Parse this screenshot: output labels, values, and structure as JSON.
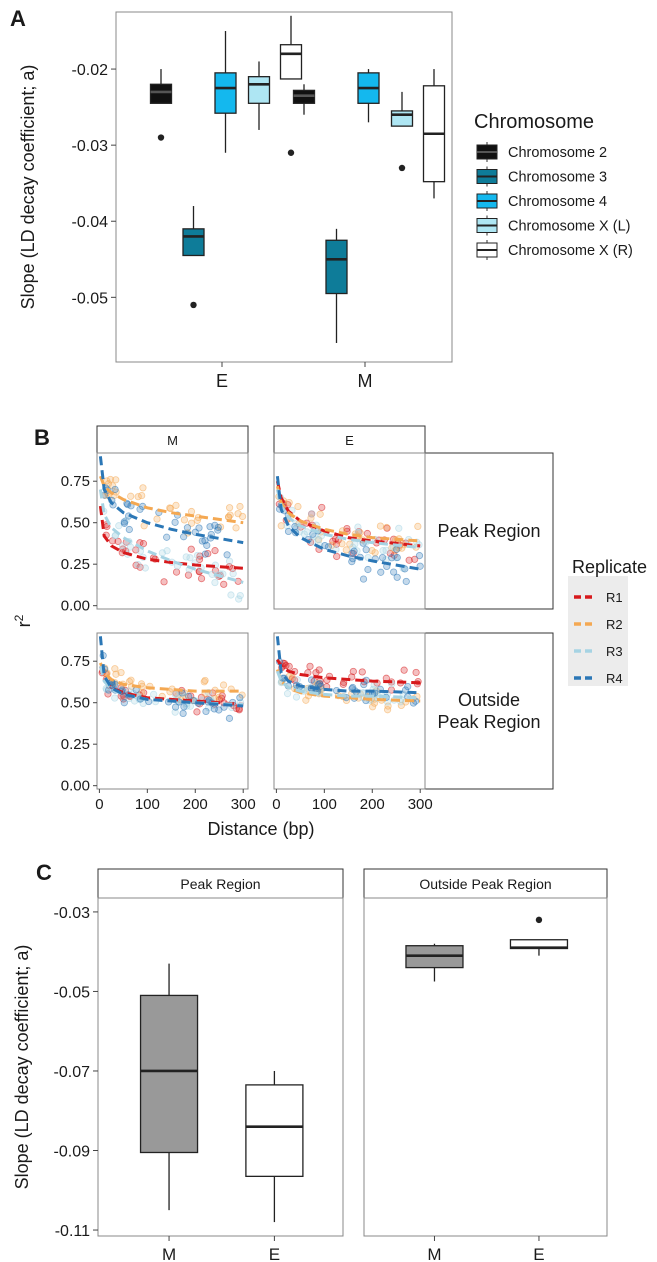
{
  "panel_labels": [
    "A",
    "B",
    "C"
  ],
  "colors": {
    "chr2": "#111111",
    "chr3": "#0e7c99",
    "chr4": "#14b8ee",
    "chrXL": "#aee6f3",
    "chrXR": "#ffffff",
    "R1": "#d7191c",
    "R2": "#f4a852",
    "R3": "#a6d3e3",
    "R4": "#2b77b6",
    "boxM": "#999999",
    "boxE": "#ffffff"
  },
  "chart_data": [
    {
      "id": "A",
      "type": "box",
      "ylabel": "Slope (LD decay coefficient; a)",
      "ylim": [
        -0.0585,
        -0.0125
      ],
      "y_ticks": [
        -0.02,
        -0.03,
        -0.04,
        -0.05
      ],
      "y_tick_labels": [
        "-0.02",
        "-0.03",
        "-0.04",
        "-0.05"
      ],
      "categories": [
        "E",
        "M"
      ],
      "legend": {
        "title": "Chromosome",
        "position": "right",
        "entries": [
          "Chromosome 2",
          "Chromosome 3",
          "Chromosome 4",
          "Chromosome X (L)",
          "Chromosome X (R)"
        ]
      },
      "series": [
        {
          "name": "Chromosome 2",
          "color_key": "chr2",
          "boxes": [
            {
              "category": "E",
              "min": -0.0245,
              "q1": -0.0245,
              "median": -0.023,
              "q3": -0.022,
              "max": -0.02,
              "outliers": [
                -0.029
              ]
            },
            {
              "category": "M",
              "min": -0.026,
              "q1": -0.0245,
              "median": -0.0235,
              "q3": -0.0228,
              "max": -0.022,
              "outliers": []
            }
          ]
        },
        {
          "name": "Chromosome 3",
          "color_key": "chr3",
          "boxes": [
            {
              "category": "E",
              "min": -0.0445,
              "q1": -0.0445,
              "median": -0.042,
              "q3": -0.041,
              "max": -0.038,
              "outliers": [
                -0.051
              ]
            },
            {
              "category": "M",
              "min": -0.056,
              "q1": -0.0495,
              "median": -0.045,
              "q3": -0.0425,
              "max": -0.041,
              "outliers": []
            }
          ]
        },
        {
          "name": "Chromosome 4",
          "color_key": "chr4",
          "boxes": [
            {
              "category": "E",
              "min": -0.031,
              "q1": -0.0258,
              "median": -0.0225,
              "q3": -0.0205,
              "max": -0.015,
              "outliers": []
            },
            {
              "category": "M",
              "min": -0.027,
              "q1": -0.0245,
              "median": -0.0225,
              "q3": -0.0205,
              "max": -0.02,
              "outliers": []
            }
          ]
        },
        {
          "name": "Chromosome X (L)",
          "color_key": "chrXL",
          "boxes": [
            {
              "category": "E",
              "min": -0.028,
              "q1": -0.0245,
              "median": -0.022,
              "q3": -0.021,
              "max": -0.019,
              "outliers": []
            },
            {
              "category": "M",
              "min": -0.0275,
              "q1": -0.0275,
              "median": -0.026,
              "q3": -0.0255,
              "max": -0.023,
              "outliers": [
                -0.033
              ]
            }
          ]
        },
        {
          "name": "Chromosome X (R)",
          "color_key": "chrXR",
          "boxes": [
            {
              "category": "E",
              "min": -0.0213,
              "q1": -0.0213,
              "median": -0.018,
              "q3": -0.0168,
              "max": -0.013,
              "outliers": [
                -0.031
              ]
            },
            {
              "category": "M",
              "min": -0.037,
              "q1": -0.0348,
              "median": -0.0285,
              "q3": -0.0222,
              "max": -0.02,
              "outliers": []
            }
          ]
        }
      ]
    },
    {
      "id": "B",
      "type": "scatter",
      "xlabel": "Distance (bp)",
      "ylabel": "r",
      "ylabel_superscript": "2",
      "xlim": [
        -5,
        310
      ],
      "ylim": [
        -0.02,
        0.92
      ],
      "x_ticks": [
        0,
        100,
        200,
        300
      ],
      "x_tick_labels": [
        "0",
        "100",
        "200",
        "300"
      ],
      "y_ticks": [
        0.0,
        0.25,
        0.5,
        0.75
      ],
      "y_tick_labels": [
        "0.00",
        "0.25",
        "0.50",
        "0.75"
      ],
      "column_strips": [
        "M",
        "E"
      ],
      "row_strips": [
        "Peak Region",
        "Outside\nPeak Region"
      ],
      "legend": {
        "title": "Replicate",
        "position": "right",
        "entries": [
          "R1",
          "R2",
          "R3",
          "R4"
        ]
      },
      "fits": [
        {
          "column": "M",
          "row": "Peak Region",
          "curves": [
            {
              "name": "R1",
              "points": [
                [
                  2,
                  0.6
                ],
                [
                  10,
                  0.42
                ],
                [
                  25,
                  0.36
                ],
                [
                  50,
                  0.32
                ],
                [
                  100,
                  0.28
                ],
                [
                  150,
                  0.26
                ],
                [
                  200,
                  0.245
                ],
                [
                  300,
                  0.225
                ]
              ]
            },
            {
              "name": "R2",
              "points": [
                [
                  2,
                  0.78
                ],
                [
                  10,
                  0.72
                ],
                [
                  25,
                  0.68
                ],
                [
                  50,
                  0.64
                ],
                [
                  100,
                  0.59
                ],
                [
                  150,
                  0.56
                ],
                [
                  200,
                  0.54
                ],
                [
                  300,
                  0.5
                ]
              ]
            },
            {
              "name": "R3",
              "points": [
                [
                  2,
                  0.7
                ],
                [
                  10,
                  0.55
                ],
                [
                  25,
                  0.47
                ],
                [
                  50,
                  0.41
                ],
                [
                  100,
                  0.33
                ],
                [
                  150,
                  0.27
                ],
                [
                  200,
                  0.22
                ],
                [
                  300,
                  0.14
                ]
              ]
            },
            {
              "name": "R4",
              "points": [
                [
                  2,
                  0.9
                ],
                [
                  10,
                  0.7
                ],
                [
                  25,
                  0.62
                ],
                [
                  50,
                  0.56
                ],
                [
                  100,
                  0.5
                ],
                [
                  150,
                  0.46
                ],
                [
                  200,
                  0.43
                ],
                [
                  300,
                  0.38
                ]
              ]
            }
          ]
        },
        {
          "column": "E",
          "row": "Peak Region",
          "curves": [
            {
              "name": "R1",
              "points": [
                [
                  2,
                  0.75
                ],
                [
                  10,
                  0.65
                ],
                [
                  25,
                  0.57
                ],
                [
                  50,
                  0.51
                ],
                [
                  100,
                  0.45
                ],
                [
                  150,
                  0.41
                ],
                [
                  200,
                  0.39
                ],
                [
                  300,
                  0.36
                ]
              ]
            },
            {
              "name": "R2",
              "points": [
                [
                  2,
                  0.72
                ],
                [
                  10,
                  0.62
                ],
                [
                  25,
                  0.56
                ],
                [
                  50,
                  0.51
                ],
                [
                  100,
                  0.46
                ],
                [
                  150,
                  0.43
                ],
                [
                  200,
                  0.41
                ],
                [
                  300,
                  0.39
                ]
              ]
            },
            {
              "name": "R3",
              "points": [
                [
                  2,
                  0.7
                ],
                [
                  10,
                  0.6
                ],
                [
                  25,
                  0.53
                ],
                [
                  50,
                  0.48
                ],
                [
                  100,
                  0.43
                ],
                [
                  150,
                  0.4
                ],
                [
                  200,
                  0.38
                ],
                [
                  300,
                  0.35
                ]
              ]
            },
            {
              "name": "R4",
              "points": [
                [
                  2,
                  0.78
                ],
                [
                  10,
                  0.58
                ],
                [
                  25,
                  0.48
                ],
                [
                  50,
                  0.41
                ],
                [
                  100,
                  0.34
                ],
                [
                  150,
                  0.3
                ],
                [
                  200,
                  0.27
                ],
                [
                  300,
                  0.22
                ]
              ]
            }
          ]
        },
        {
          "column": "M",
          "row": "Outside\nPeak Region",
          "curves": [
            {
              "name": "R1",
              "points": [
                [
                  2,
                  0.72
                ],
                [
                  10,
                  0.64
                ],
                [
                  25,
                  0.59
                ],
                [
                  50,
                  0.56
                ],
                [
                  100,
                  0.53
                ],
                [
                  150,
                  0.52
                ],
                [
                  200,
                  0.51
                ],
                [
                  300,
                  0.49
                ]
              ]
            },
            {
              "name": "R2",
              "points": [
                [
                  2,
                  0.74
                ],
                [
                  10,
                  0.68
                ],
                [
                  25,
                  0.64
                ],
                [
                  50,
                  0.61
                ],
                [
                  100,
                  0.59
                ],
                [
                  150,
                  0.58
                ],
                [
                  200,
                  0.57
                ],
                [
                  300,
                  0.57
                ]
              ]
            },
            {
              "name": "R3",
              "points": [
                [
                  2,
                  0.72
                ],
                [
                  10,
                  0.63
                ],
                [
                  25,
                  0.58
                ],
                [
                  50,
                  0.55
                ],
                [
                  100,
                  0.52
                ],
                [
                  150,
                  0.51
                ],
                [
                  200,
                  0.5
                ],
                [
                  300,
                  0.49
                ]
              ]
            },
            {
              "name": "R4",
              "points": [
                [
                  2,
                  0.9
                ],
                [
                  10,
                  0.66
                ],
                [
                  25,
                  0.59
                ],
                [
                  50,
                  0.55
                ],
                [
                  100,
                  0.52
                ],
                [
                  150,
                  0.51
                ],
                [
                  200,
                  0.5
                ],
                [
                  300,
                  0.48
                ]
              ]
            }
          ]
        },
        {
          "column": "E",
          "row": "Outside\nPeak Region",
          "curves": [
            {
              "name": "R1",
              "points": [
                [
                  2,
                  0.76
                ],
                [
                  10,
                  0.72
                ],
                [
                  25,
                  0.69
                ],
                [
                  50,
                  0.67
                ],
                [
                  100,
                  0.65
                ],
                [
                  150,
                  0.64
                ],
                [
                  200,
                  0.63
                ],
                [
                  300,
                  0.62
                ]
              ]
            },
            {
              "name": "R2",
              "points": [
                [
                  2,
                  0.7
                ],
                [
                  10,
                  0.63
                ],
                [
                  25,
                  0.59
                ],
                [
                  50,
                  0.56
                ],
                [
                  100,
                  0.54
                ],
                [
                  150,
                  0.53
                ],
                [
                  200,
                  0.52
                ],
                [
                  300,
                  0.51
                ]
              ]
            },
            {
              "name": "R3",
              "points": [
                [
                  2,
                  0.69
                ],
                [
                  10,
                  0.63
                ],
                [
                  25,
                  0.59
                ],
                [
                  50,
                  0.57
                ],
                [
                  100,
                  0.55
                ],
                [
                  150,
                  0.54
                ],
                [
                  200,
                  0.54
                ],
                [
                  300,
                  0.53
                ]
              ]
            },
            {
              "name": "R4",
              "points": [
                [
                  2,
                  0.9
                ],
                [
                  10,
                  0.68
                ],
                [
                  25,
                  0.63
                ],
                [
                  50,
                  0.6
                ],
                [
                  100,
                  0.58
                ],
                [
                  150,
                  0.57
                ],
                [
                  200,
                  0.57
                ],
                [
                  300,
                  0.56
                ]
              ]
            }
          ]
        }
      ]
    },
    {
      "id": "C",
      "type": "box",
      "ylabel": "Slope (LD decay coefficient; a)",
      "ylim": [
        -0.1115,
        -0.0265
      ],
      "y_ticks": [
        -0.03,
        -0.05,
        -0.07,
        -0.09,
        -0.11
      ],
      "y_tick_labels": [
        "-0.03",
        "-0.05",
        "-0.07",
        "-0.09",
        "-0.11"
      ],
      "facets": [
        "Peak Region",
        "Outside Peak Region"
      ],
      "categories": [
        "M",
        "E"
      ],
      "boxes": [
        {
          "facet": "Peak Region",
          "category": "M",
          "color_key": "boxM",
          "min": -0.105,
          "q1": -0.0905,
          "median": -0.07,
          "q3": -0.051,
          "max": -0.043,
          "outliers": []
        },
        {
          "facet": "Peak Region",
          "category": "E",
          "color_key": "boxE",
          "min": -0.108,
          "q1": -0.0965,
          "median": -0.084,
          "q3": -0.0735,
          "max": -0.07,
          "outliers": []
        },
        {
          "facet": "Outside Peak Region",
          "category": "M",
          "color_key": "boxM",
          "min": -0.0475,
          "q1": -0.044,
          "median": -0.041,
          "q3": -0.0385,
          "max": -0.038,
          "outliers": []
        },
        {
          "facet": "Outside Peak Region",
          "category": "E",
          "color_key": "boxE",
          "min": -0.041,
          "q1": -0.0392,
          "median": -0.039,
          "q3": -0.037,
          "max": -0.037,
          "outliers": [
            -0.032
          ]
        }
      ]
    }
  ]
}
